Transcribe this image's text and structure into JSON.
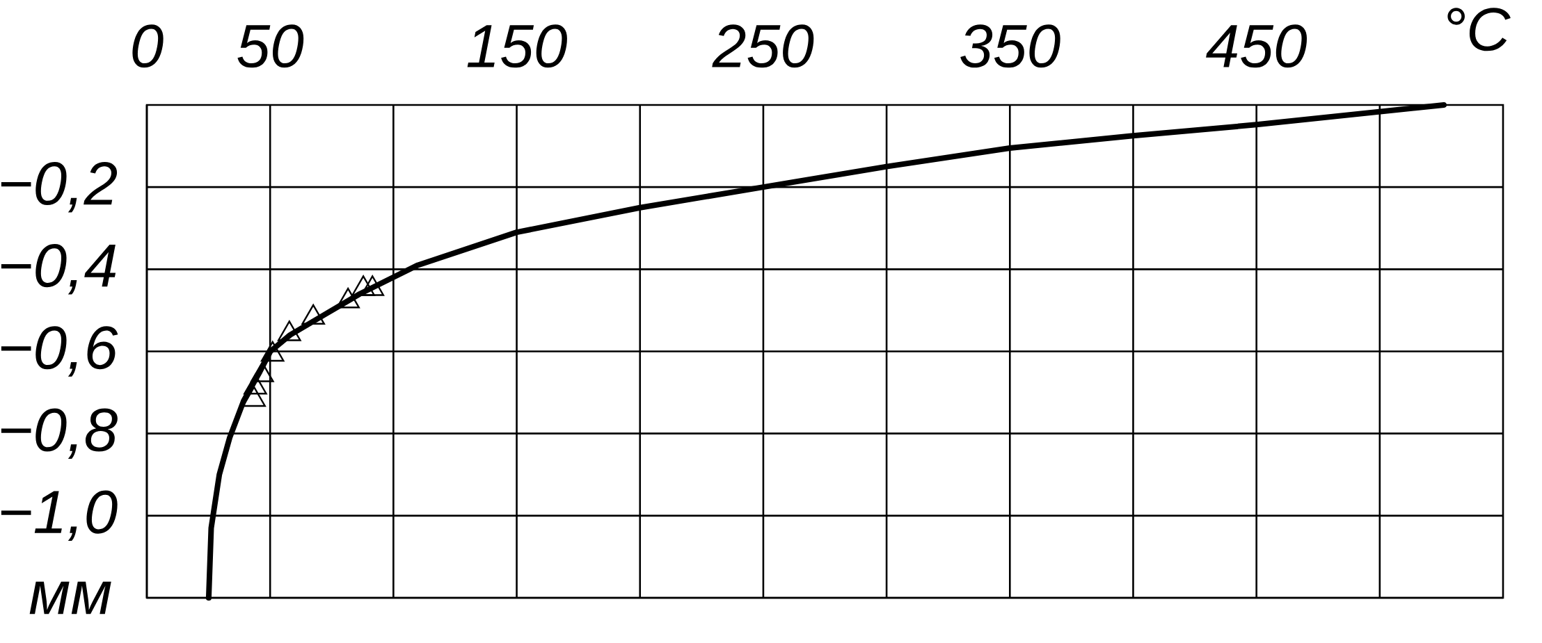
{
  "chart_data": {
    "type": "line",
    "xlabel": "°C",
    "ylabel": "мм",
    "xlim": [
      0,
      550
    ],
    "ylim": [
      -1.2,
      0
    ],
    "xticks": [
      0,
      50,
      {
        "value": 100,
        "label": null
      },
      150,
      {
        "value": 200,
        "label": null
      },
      250,
      {
        "value": 300,
        "label": null
      },
      350,
      {
        "value": 400,
        "label": null
      },
      450,
      {
        "value": 500,
        "label": null
      }
    ],
    "yticks": [
      {
        "value": -1.2,
        "label": null
      },
      {
        "value": -1.0,
        "label": "−1,0"
      },
      {
        "value": -0.8,
        "label": "−0,8"
      },
      {
        "value": -0.6,
        "label": "−0,6"
      },
      {
        "value": -0.4,
        "label": "−0,4"
      },
      {
        "value": -0.2,
        "label": "−0,2"
      }
    ],
    "grid": true,
    "series": [
      {
        "color": "#000000",
        "marker": "none",
        "line_style": "solid",
        "x": [
          25.1,
          26.1,
          29.4,
          33.6,
          39.3,
          45.8,
          50.1,
          58.1,
          72.2,
          86.4,
          109.9,
          150,
          200,
          250,
          300,
          350,
          400,
          450,
          526
        ],
        "values": [
          -1.2,
          -1.03,
          -0.9,
          -0.81,
          -0.72,
          -0.65,
          -0.6,
          -0.56,
          -0.51,
          -0.46,
          -0.39,
          -0.31,
          -0.25,
          -0.2,
          -0.15,
          -0.105,
          -0.075,
          -0.048,
          0
        ]
      },
      {
        "type": "scatter",
        "color": "#000000",
        "marker": "triangle",
        "x": [
          43.5,
          44.0,
          46.8,
          51.0,
          57.8,
          67.5,
          81.6,
          87.8,
          91.5
        ],
        "values": [
          -0.71,
          -0.68,
          -0.65,
          -0.6,
          -0.55,
          -0.51,
          -0.47,
          -0.44,
          -0.44
        ]
      }
    ]
  }
}
